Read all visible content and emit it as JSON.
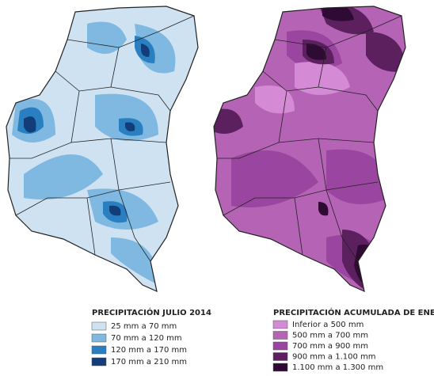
{
  "maps": [
    {
      "title": "PRECIPITACIÓN JULIO 2014",
      "legend": [
        {
          "label": "25 mm a 70 mm",
          "color": "#cfe2f1"
        },
        {
          "label": "70 mm a 120 mm",
          "color": "#7fb8e0"
        },
        {
          "label": "120 mm a 170 mm",
          "color": "#2a7fc1"
        },
        {
          "label": "170 mm a 210 mm",
          "color": "#123d78"
        }
      ]
    },
    {
      "title": "PRECIPITACIÓN ACUMULADA DE ENERO A JULIO",
      "legend": [
        {
          "label": "Inferior a 500 mm",
          "color": "#d48ad4"
        },
        {
          "label": "500 mm a 700 mm",
          "color": "#b563b5"
        },
        {
          "label": "700 mm a 900 mm",
          "color": "#9a45a0"
        },
        {
          "label": "900 mm a 1.100 mm",
          "color": "#5c205f"
        },
        {
          "label": "1.100 mm a 1.300 mm",
          "color": "#2e0b33"
        }
      ]
    }
  ]
}
